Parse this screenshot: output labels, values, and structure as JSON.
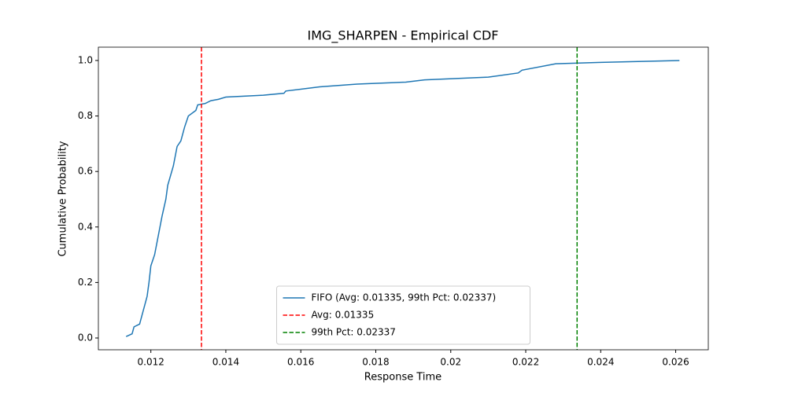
{
  "chart_data": {
    "type": "line",
    "title": "IMG_SHARPEN - Empirical CDF",
    "x_label": "Response Time",
    "y_label": "Cumulative Probability",
    "x": [
      0.01134,
      0.0115,
      0.01155,
      0.0117,
      0.0118,
      0.0119,
      0.01195,
      0.012,
      0.0121,
      0.0122,
      0.0123,
      0.0124,
      0.01245,
      0.0126,
      0.0127,
      0.0128,
      0.0129,
      0.013,
      0.0132,
      0.01325,
      0.01345,
      0.0136,
      0.0138,
      0.014,
      0.015,
      0.01555,
      0.0156,
      0.0165,
      0.0175,
      0.0188,
      0.0193,
      0.021,
      0.0218,
      0.0219,
      0.0228,
      0.024,
      0.0261
    ],
    "series": [
      {
        "name": "FIFO (Avg: 0.01335, 99th Pct: 0.02337)",
        "color": "#1f77b4",
        "values": [
          0.005,
          0.015,
          0.04,
          0.05,
          0.1,
          0.15,
          0.2,
          0.26,
          0.3,
          0.37,
          0.44,
          0.5,
          0.55,
          0.62,
          0.69,
          0.71,
          0.76,
          0.8,
          0.82,
          0.84,
          0.845,
          0.855,
          0.86,
          0.868,
          0.875,
          0.882,
          0.89,
          0.905,
          0.915,
          0.922,
          0.93,
          0.94,
          0.955,
          0.965,
          0.988,
          0.993,
          1.0
        ]
      }
    ],
    "reference_lines": [
      {
        "name": "Avg: 0.01335",
        "value": 0.01335,
        "color": "#ff0000"
      },
      {
        "name": "99th Pct: 0.02337",
        "value": 0.02337,
        "color": "#008000"
      }
    ],
    "xlim": [
      0.0106,
      0.02687
    ],
    "ylim": [
      -0.0425,
      1.048
    ],
    "xticks": [
      0.012,
      0.014,
      0.016,
      0.018,
      0.02,
      0.022,
      0.024,
      0.026
    ],
    "yticks": [
      {
        "value": 0,
        "label": "0.0"
      },
      0.2,
      0.4,
      0.6,
      0.8,
      {
        "value": 1,
        "label": "1.0"
      }
    ],
    "legend": "lower center"
  }
}
